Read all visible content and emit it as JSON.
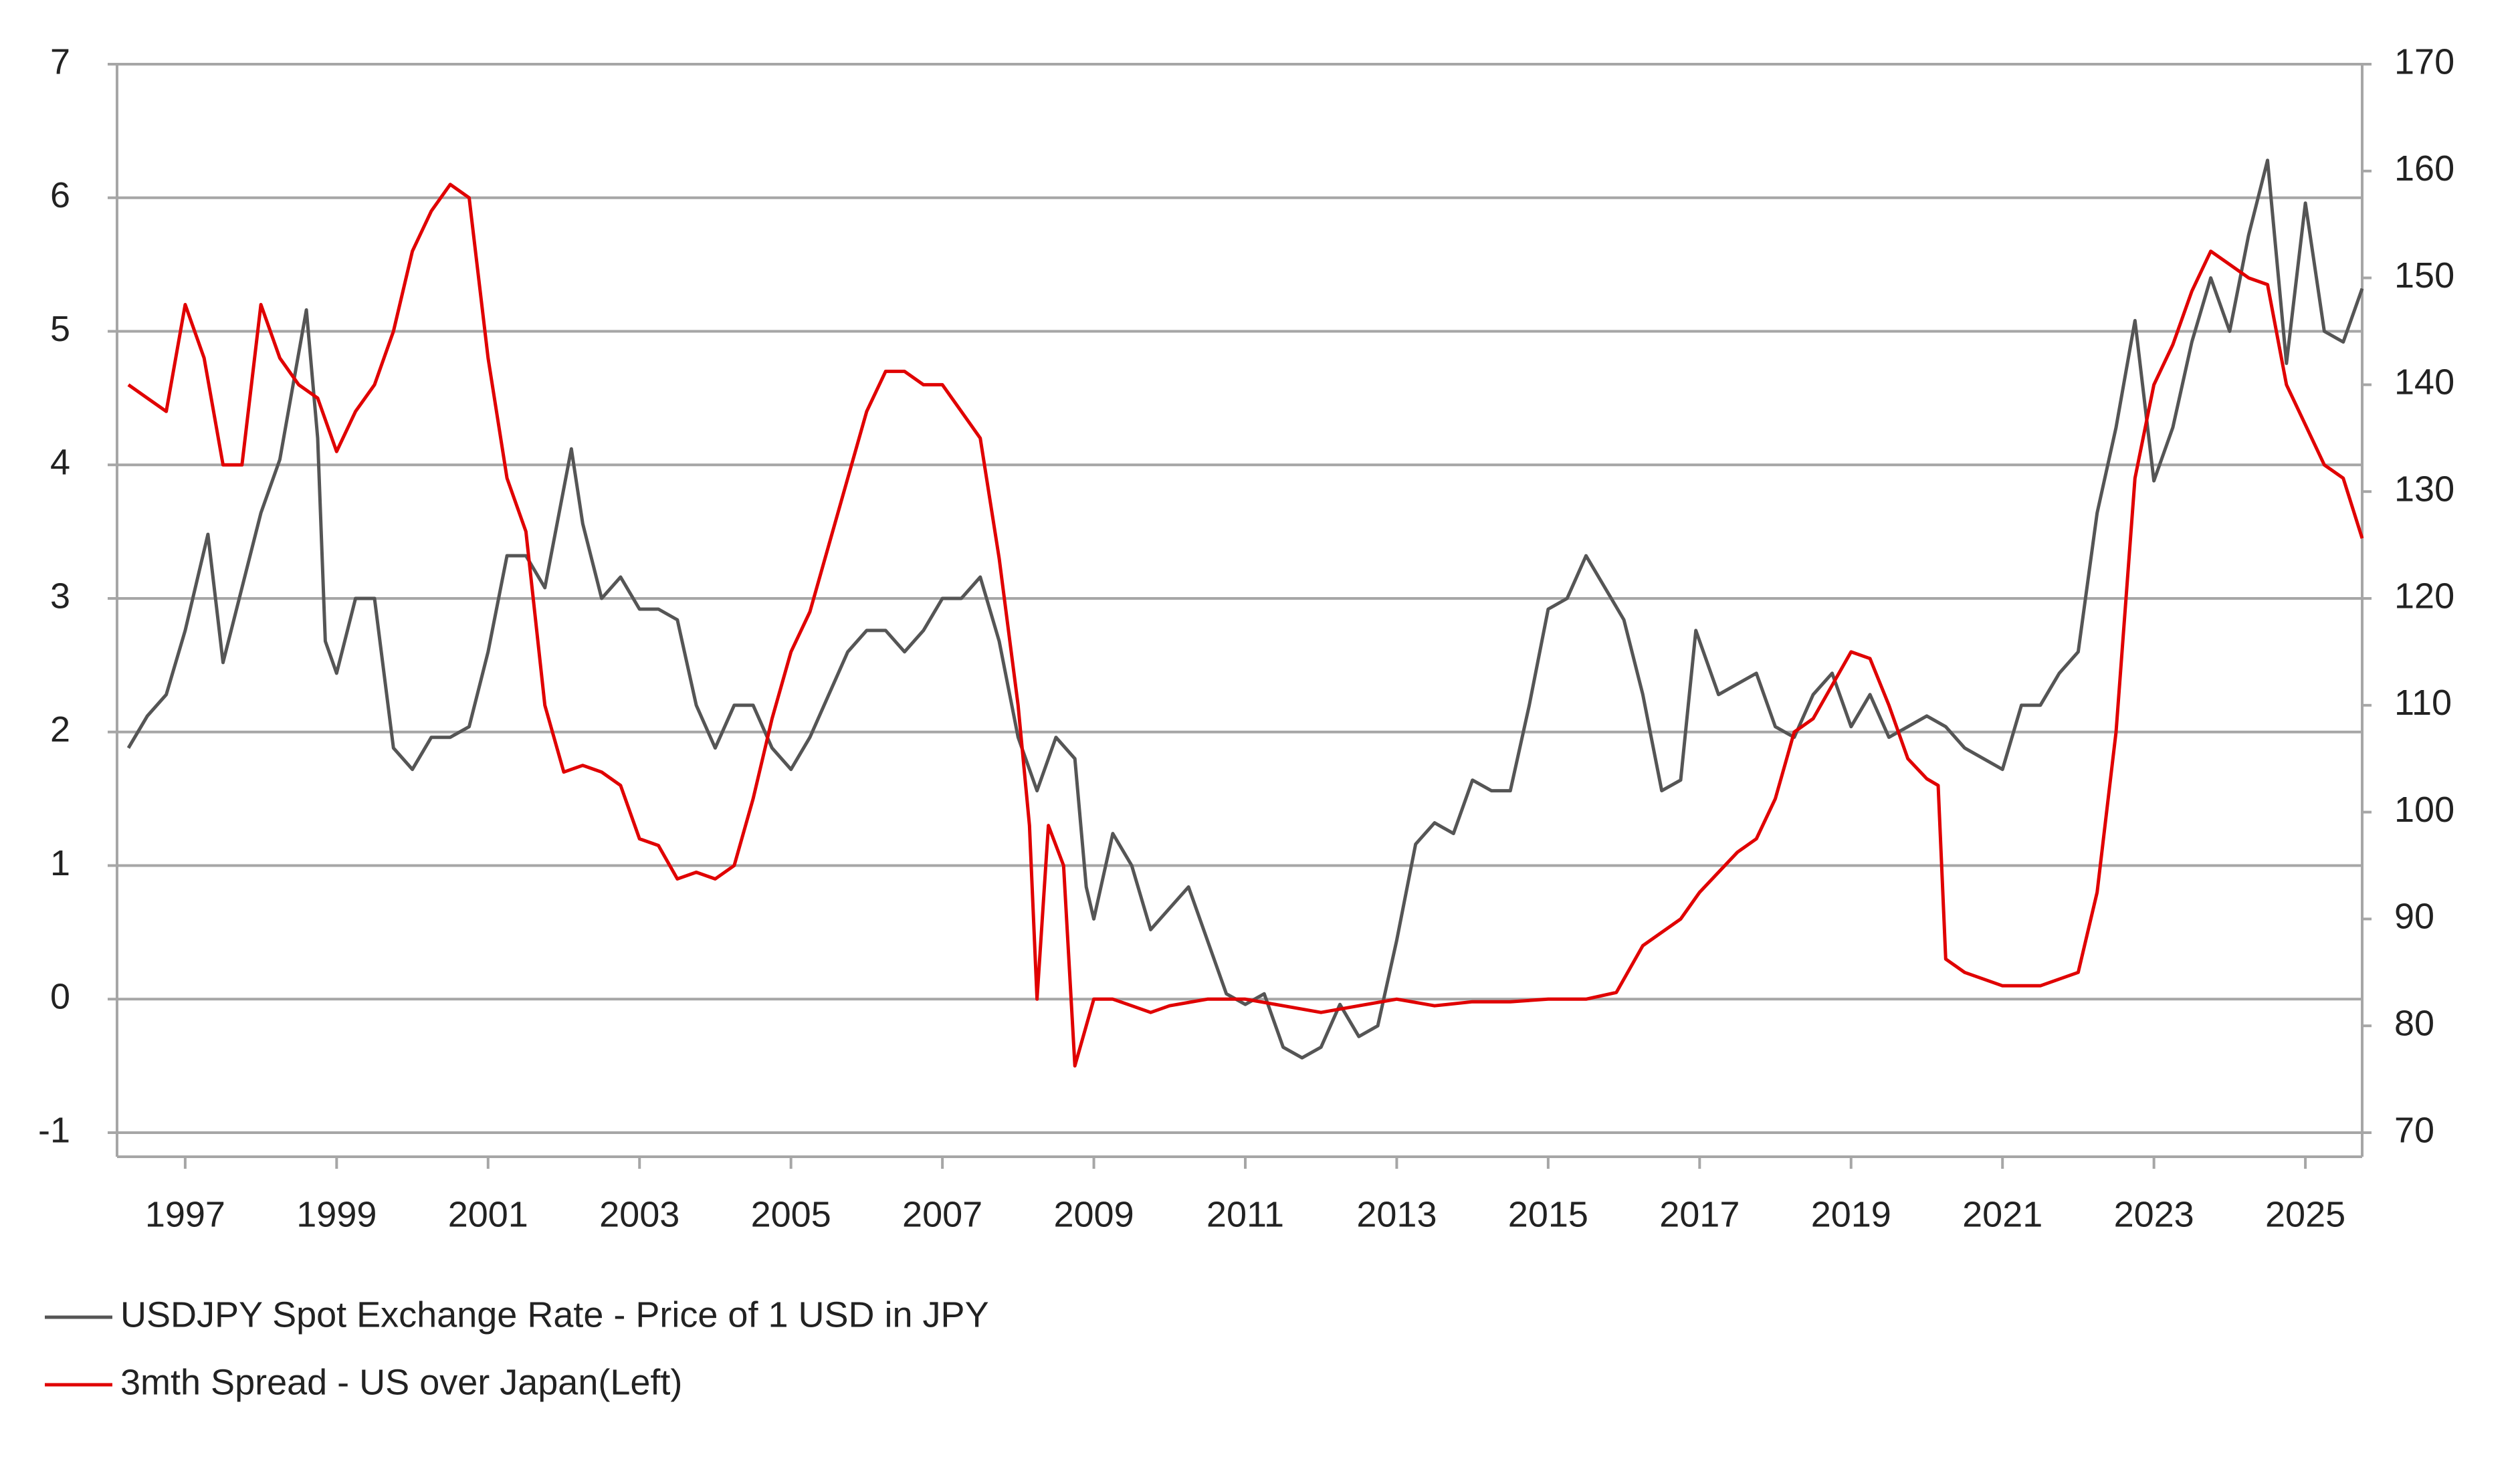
{
  "chart_data": {
    "type": "line",
    "xlim": [
      1996.1,
      2025.75
    ],
    "xticks": [
      1997,
      1999,
      2001,
      2003,
      2005,
      2007,
      2009,
      2011,
      2013,
      2015,
      2017,
      2019,
      2021,
      2023,
      2025
    ],
    "ylim": [
      -1,
      7
    ],
    "yticks": [
      -1,
      0,
      1,
      2,
      3,
      4,
      5,
      6,
      7
    ],
    "y2lim": [
      70,
      170
    ],
    "y2ticks": [
      70,
      80,
      90,
      100,
      110,
      120,
      130,
      140,
      150,
      160,
      170
    ],
    "grid": true,
    "legend": "bottom-left",
    "series": [
      {
        "name": "USDJPY Spot Exchange Rate - Price of 1 USD in JPY",
        "color": "#555555",
        "axis": "y2",
        "x": [
          1996.25,
          1996.5,
          1996.75,
          1997.0,
          1997.3,
          1997.5,
          1997.75,
          1998.0,
          1998.25,
          1998.6,
          1998.75,
          1998.85,
          1999.0,
          1999.25,
          1999.5,
          1999.75,
          2000.0,
          2000.25,
          2000.5,
          2000.75,
          2001.0,
          2001.25,
          2001.5,
          2001.75,
          2002.1,
          2002.25,
          2002.5,
          2002.75,
          2003.0,
          2003.25,
          2003.5,
          2003.75,
          2004.0,
          2004.25,
          2004.5,
          2004.75,
          2005.0,
          2005.25,
          2005.5,
          2005.75,
          2006.0,
          2006.25,
          2006.5,
          2006.75,
          2007.0,
          2007.25,
          2007.5,
          2007.75,
          2008.0,
          2008.25,
          2008.5,
          2008.75,
          2008.9,
          2009.0,
          2009.25,
          2009.5,
          2009.75,
          2010.0,
          2010.25,
          2010.5,
          2010.75,
          2011.0,
          2011.25,
          2011.5,
          2011.75,
          2012.0,
          2012.25,
          2012.5,
          2012.75,
          2013.0,
          2013.25,
          2013.5,
          2013.75,
          2014.0,
          2014.25,
          2014.5,
          2014.75,
          2015.0,
          2015.25,
          2015.5,
          2015.75,
          2016.0,
          2016.25,
          2016.5,
          2016.75,
          2016.95,
          2017.25,
          2017.5,
          2017.75,
          2018.0,
          2018.25,
          2018.5,
          2018.75,
          2019.0,
          2019.25,
          2019.5,
          2019.75,
          2020.0,
          2020.25,
          2020.5,
          2020.75,
          2021.0,
          2021.25,
          2021.5,
          2021.75,
          2022.0,
          2022.25,
          2022.5,
          2022.75,
          2023.0,
          2023.25,
          2023.5,
          2023.75,
          2024.0,
          2024.25,
          2024.5,
          2024.75,
          2025.0,
          2025.25,
          2025.5,
          2025.75
        ],
        "values": [
          106,
          109,
          111,
          117,
          126,
          114,
          121,
          128,
          133,
          147,
          135,
          116,
          113,
          120,
          120,
          106,
          104,
          107,
          107,
          108,
          115,
          124,
          124,
          121,
          134,
          127,
          120,
          122,
          119,
          119,
          118,
          110,
          106,
          110,
          110,
          106,
          104,
          107,
          111,
          115,
          117,
          117,
          115,
          117,
          120,
          120,
          122,
          116,
          107,
          102,
          107,
          105,
          93,
          90,
          98,
          95,
          89,
          91,
          93,
          88,
          83,
          82,
          83,
          78,
          77,
          78,
          82,
          79,
          80,
          88,
          97,
          99,
          98,
          103,
          102,
          102,
          110,
          119,
          120,
          124,
          121,
          118,
          111,
          102,
          103,
          117,
          111,
          112,
          113,
          108,
          107,
          111,
          113,
          108,
          111,
          107,
          108,
          109,
          108,
          106,
          105,
          104,
          110,
          110,
          113,
          115,
          128,
          136,
          146,
          131,
          136,
          144,
          150,
          145,
          154,
          161,
          142,
          157,
          145,
          144,
          149
        ]
      },
      {
        "name": "3mth Spread - US over Japan(Left)",
        "color": "#e00000",
        "x": [
          1996.25,
          1996.5,
          1996.75,
          1997.0,
          1997.25,
          1997.5,
          1997.75,
          1998.0,
          1998.25,
          1998.5,
          1998.75,
          1999.0,
          1999.25,
          1999.5,
          1999.75,
          2000.0,
          2000.25,
          2000.5,
          2000.75,
          2001.0,
          2001.25,
          2001.5,
          2001.75,
          2002.0,
          2002.25,
          2002.5,
          2002.75,
          2003.0,
          2003.25,
          2003.5,
          2003.75,
          2004.0,
          2004.25,
          2004.5,
          2004.75,
          2005.0,
          2005.25,
          2005.5,
          2005.75,
          2006.0,
          2006.25,
          2006.5,
          2006.75,
          2007.0,
          2007.25,
          2007.5,
          2007.75,
          2008.0,
          2008.15,
          2008.25,
          2008.4,
          2008.6,
          2008.75,
          2009.0,
          2009.25,
          2009.5,
          2009.75,
          2010.0,
          2010.5,
          2011.0,
          2011.5,
          2012.0,
          2012.5,
          2013.0,
          2013.5,
          2014.0,
          2014.5,
          2015.0,
          2015.5,
          2015.9,
          2016.25,
          2016.75,
          2017.0,
          2017.5,
          2017.75,
          2018.0,
          2018.25,
          2018.5,
          2018.75,
          2019.0,
          2019.25,
          2019.5,
          2019.75,
          2020.0,
          2020.15,
          2020.25,
          2020.5,
          2021.0,
          2021.5,
          2022.0,
          2022.25,
          2022.5,
          2022.75,
          2023.0,
          2023.25,
          2023.5,
          2023.75,
          2024.0,
          2024.25,
          2024.5,
          2024.75,
          2025.0,
          2025.25,
          2025.5,
          2025.75
        ],
        "values": [
          4.6,
          4.5,
          4.4,
          5.2,
          4.8,
          4.0,
          4.0,
          5.2,
          4.8,
          4.6,
          4.5,
          4.1,
          4.4,
          4.6,
          5.0,
          5.6,
          5.9,
          6.1,
          6.0,
          4.8,
          3.9,
          3.5,
          2.2,
          1.7,
          1.75,
          1.7,
          1.6,
          1.2,
          1.15,
          0.9,
          0.95,
          0.9,
          1.0,
          1.5,
          2.1,
          2.6,
          2.9,
          3.4,
          3.9,
          4.4,
          4.7,
          4.7,
          4.6,
          4.6,
          4.4,
          4.2,
          3.3,
          2.2,
          1.3,
          0.0,
          1.3,
          1.0,
          -0.5,
          0.0,
          0.0,
          -0.05,
          -0.1,
          -0.05,
          0.0,
          0.0,
          -0.05,
          -0.1,
          -0.05,
          0.0,
          -0.05,
          -0.02,
          -0.02,
          0.0,
          0.0,
          0.05,
          0.4,
          0.6,
          0.8,
          1.1,
          1.2,
          1.5,
          2.0,
          2.1,
          2.35,
          2.6,
          2.55,
          2.2,
          1.8,
          1.65,
          1.6,
          0.3,
          0.2,
          0.1,
          0.1,
          0.2,
          0.8,
          2.0,
          3.9,
          4.6,
          4.9,
          5.3,
          5.6,
          5.5,
          5.4,
          5.35,
          4.6,
          4.3,
          4.0,
          3.9,
          3.45
        ]
      }
    ]
  }
}
